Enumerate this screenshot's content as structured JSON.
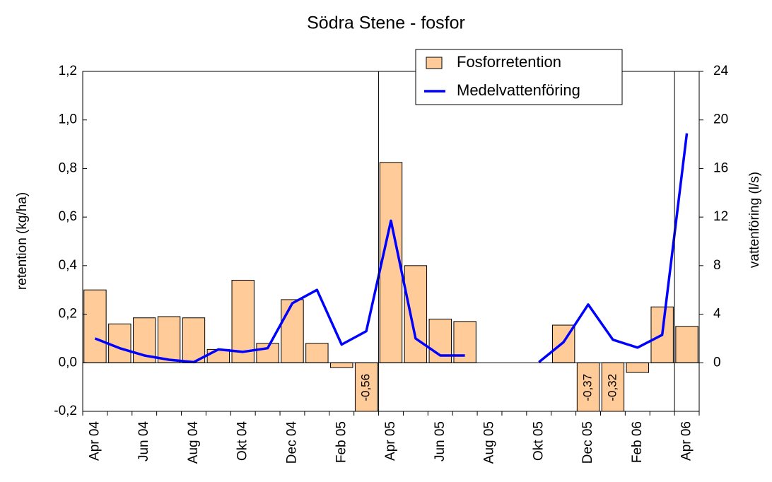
{
  "chart_data": {
    "type": "bar_line",
    "title": "Södra Stene - fosfor",
    "y_label": "retention (kg/ha)",
    "y2_label": "vattenföring (l/s)",
    "categories": [
      "Apr 04",
      null,
      "Jun 04",
      null,
      "Aug 04",
      null,
      "Okt 04",
      null,
      "Dec 04",
      null,
      "Feb 05",
      null,
      "Apr 05",
      null,
      "Jun 05",
      null,
      "Aug 05",
      null,
      "Okt 05",
      null,
      "Dec 05",
      null,
      "Feb 06",
      null,
      "Apr 06"
    ],
    "series": [
      {
        "name": "Fosforretention",
        "type": "bar",
        "color": "#ffcc99",
        "values": [
          0.3,
          0.16,
          0.185,
          0.19,
          0.185,
          0.055,
          0.34,
          0.08,
          0.26,
          0.08,
          -0.02,
          -0.56,
          0.825,
          0.4,
          0.18,
          0.17,
          null,
          null,
          null,
          0.155,
          -0.37,
          -0.32,
          -0.04,
          0.23,
          0.15
        ],
        "value_labels": [
          null,
          null,
          null,
          null,
          null,
          null,
          null,
          null,
          null,
          null,
          null,
          "-0,56",
          null,
          null,
          null,
          null,
          null,
          null,
          null,
          null,
          "-0,37",
          "-0,32",
          null,
          null,
          null
        ]
      },
      {
        "name": "Medelvattenföring",
        "type": "line",
        "color": "#0000ff",
        "axis": "y2",
        "values": [
          2.0,
          1.2,
          0.6,
          0.25,
          0.05,
          1.1,
          0.9,
          1.2,
          4.9,
          6.0,
          1.5,
          2.6,
          11.7,
          2.0,
          0.6,
          0.6,
          null,
          null,
          0.05,
          1.7,
          4.8,
          1.9,
          1.25,
          2.3,
          18.9
        ]
      }
    ],
    "ylim": [
      -0.2,
      1.2
    ],
    "yticks": [
      {
        "value": -0.2,
        "label": "-0,2"
      },
      {
        "value": 0,
        "label": "0,0"
      },
      {
        "value": 0.2,
        "label": "0,2"
      },
      {
        "value": 0.4,
        "label": "0,4"
      },
      {
        "value": 0.6,
        "label": "0,6"
      },
      {
        "value": 0.8,
        "label": "0,8"
      },
      {
        "value": 1.0,
        "label": "1,0"
      },
      {
        "value": 1.2,
        "label": "1,2"
      }
    ],
    "y2lim": [
      -4,
      24
    ],
    "y2ticks": [
      0,
      4,
      8,
      12,
      16,
      20,
      24
    ],
    "legend": "top-right"
  }
}
